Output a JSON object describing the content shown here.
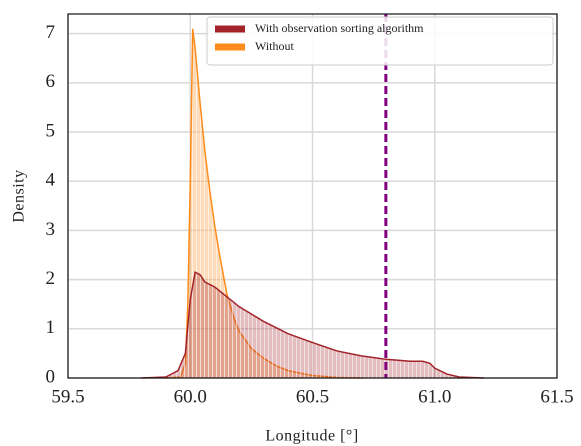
{
  "chart_data": {
    "type": "density",
    "x_label": "Longitude [°]",
    "y_label": "Density",
    "xlim": [
      59.5,
      61.5
    ],
    "ylim": [
      0,
      7.4
    ],
    "xticks": [
      {
        "value": 59.5,
        "label": "59.5"
      },
      {
        "value": 60.0,
        "label": "60.0"
      },
      {
        "value": 60.5,
        "label": "60.5"
      },
      {
        "value": 61.0,
        "label": "61.0"
      },
      {
        "value": 61.5,
        "label": "61.5"
      }
    ],
    "yticks": [
      0,
      1,
      2,
      3,
      4,
      5,
      6,
      7
    ],
    "grid": true,
    "legend": "upper right",
    "reference_line_x": 60.8,
    "reference_line_color": "#800080",
    "series": [
      {
        "name": "With observation sorting algorithm",
        "color": "#a3232b",
        "x": [
          59.8,
          59.9,
          59.95,
          59.98,
          60.0,
          60.02,
          60.04,
          60.06,
          60.1,
          60.15,
          60.2,
          60.3,
          60.4,
          60.5,
          60.6,
          60.7,
          60.8,
          60.9,
          60.95,
          60.98,
          61.0,
          61.05,
          61.1,
          61.2
        ],
        "values": [
          0,
          0.02,
          0.15,
          0.5,
          1.6,
          2.15,
          2.1,
          1.95,
          1.85,
          1.65,
          1.45,
          1.15,
          0.9,
          0.72,
          0.55,
          0.45,
          0.38,
          0.34,
          0.34,
          0.3,
          0.2,
          0.08,
          0.02,
          0
        ]
      },
      {
        "name": "Without",
        "color": "#ff8c1a",
        "x": [
          59.9,
          59.96,
          59.98,
          59.99,
          60.0,
          60.01,
          60.02,
          60.04,
          60.06,
          60.08,
          60.1,
          60.12,
          60.15,
          60.18,
          60.2,
          60.25,
          60.3,
          60.35,
          60.4,
          60.5,
          60.6,
          60.7
        ],
        "values": [
          0,
          0.02,
          0.3,
          1.5,
          4.0,
          7.1,
          6.7,
          5.6,
          4.6,
          3.8,
          3.1,
          2.5,
          1.7,
          1.2,
          0.95,
          0.6,
          0.4,
          0.25,
          0.15,
          0.05,
          0.01,
          0
        ]
      }
    ]
  }
}
